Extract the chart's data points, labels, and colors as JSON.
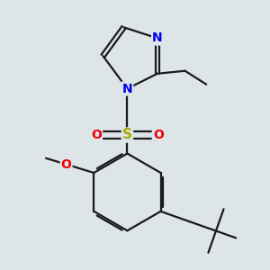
{
  "background_color": "#dde5e8",
  "bond_color": "#1a1a1a",
  "bond_width": 1.6,
  "atom_colors": {
    "N": "#0000ee",
    "O": "#ee0000",
    "S": "#aaaa00",
    "C": "#1a1a1a"
  },
  "font_size": 10
}
